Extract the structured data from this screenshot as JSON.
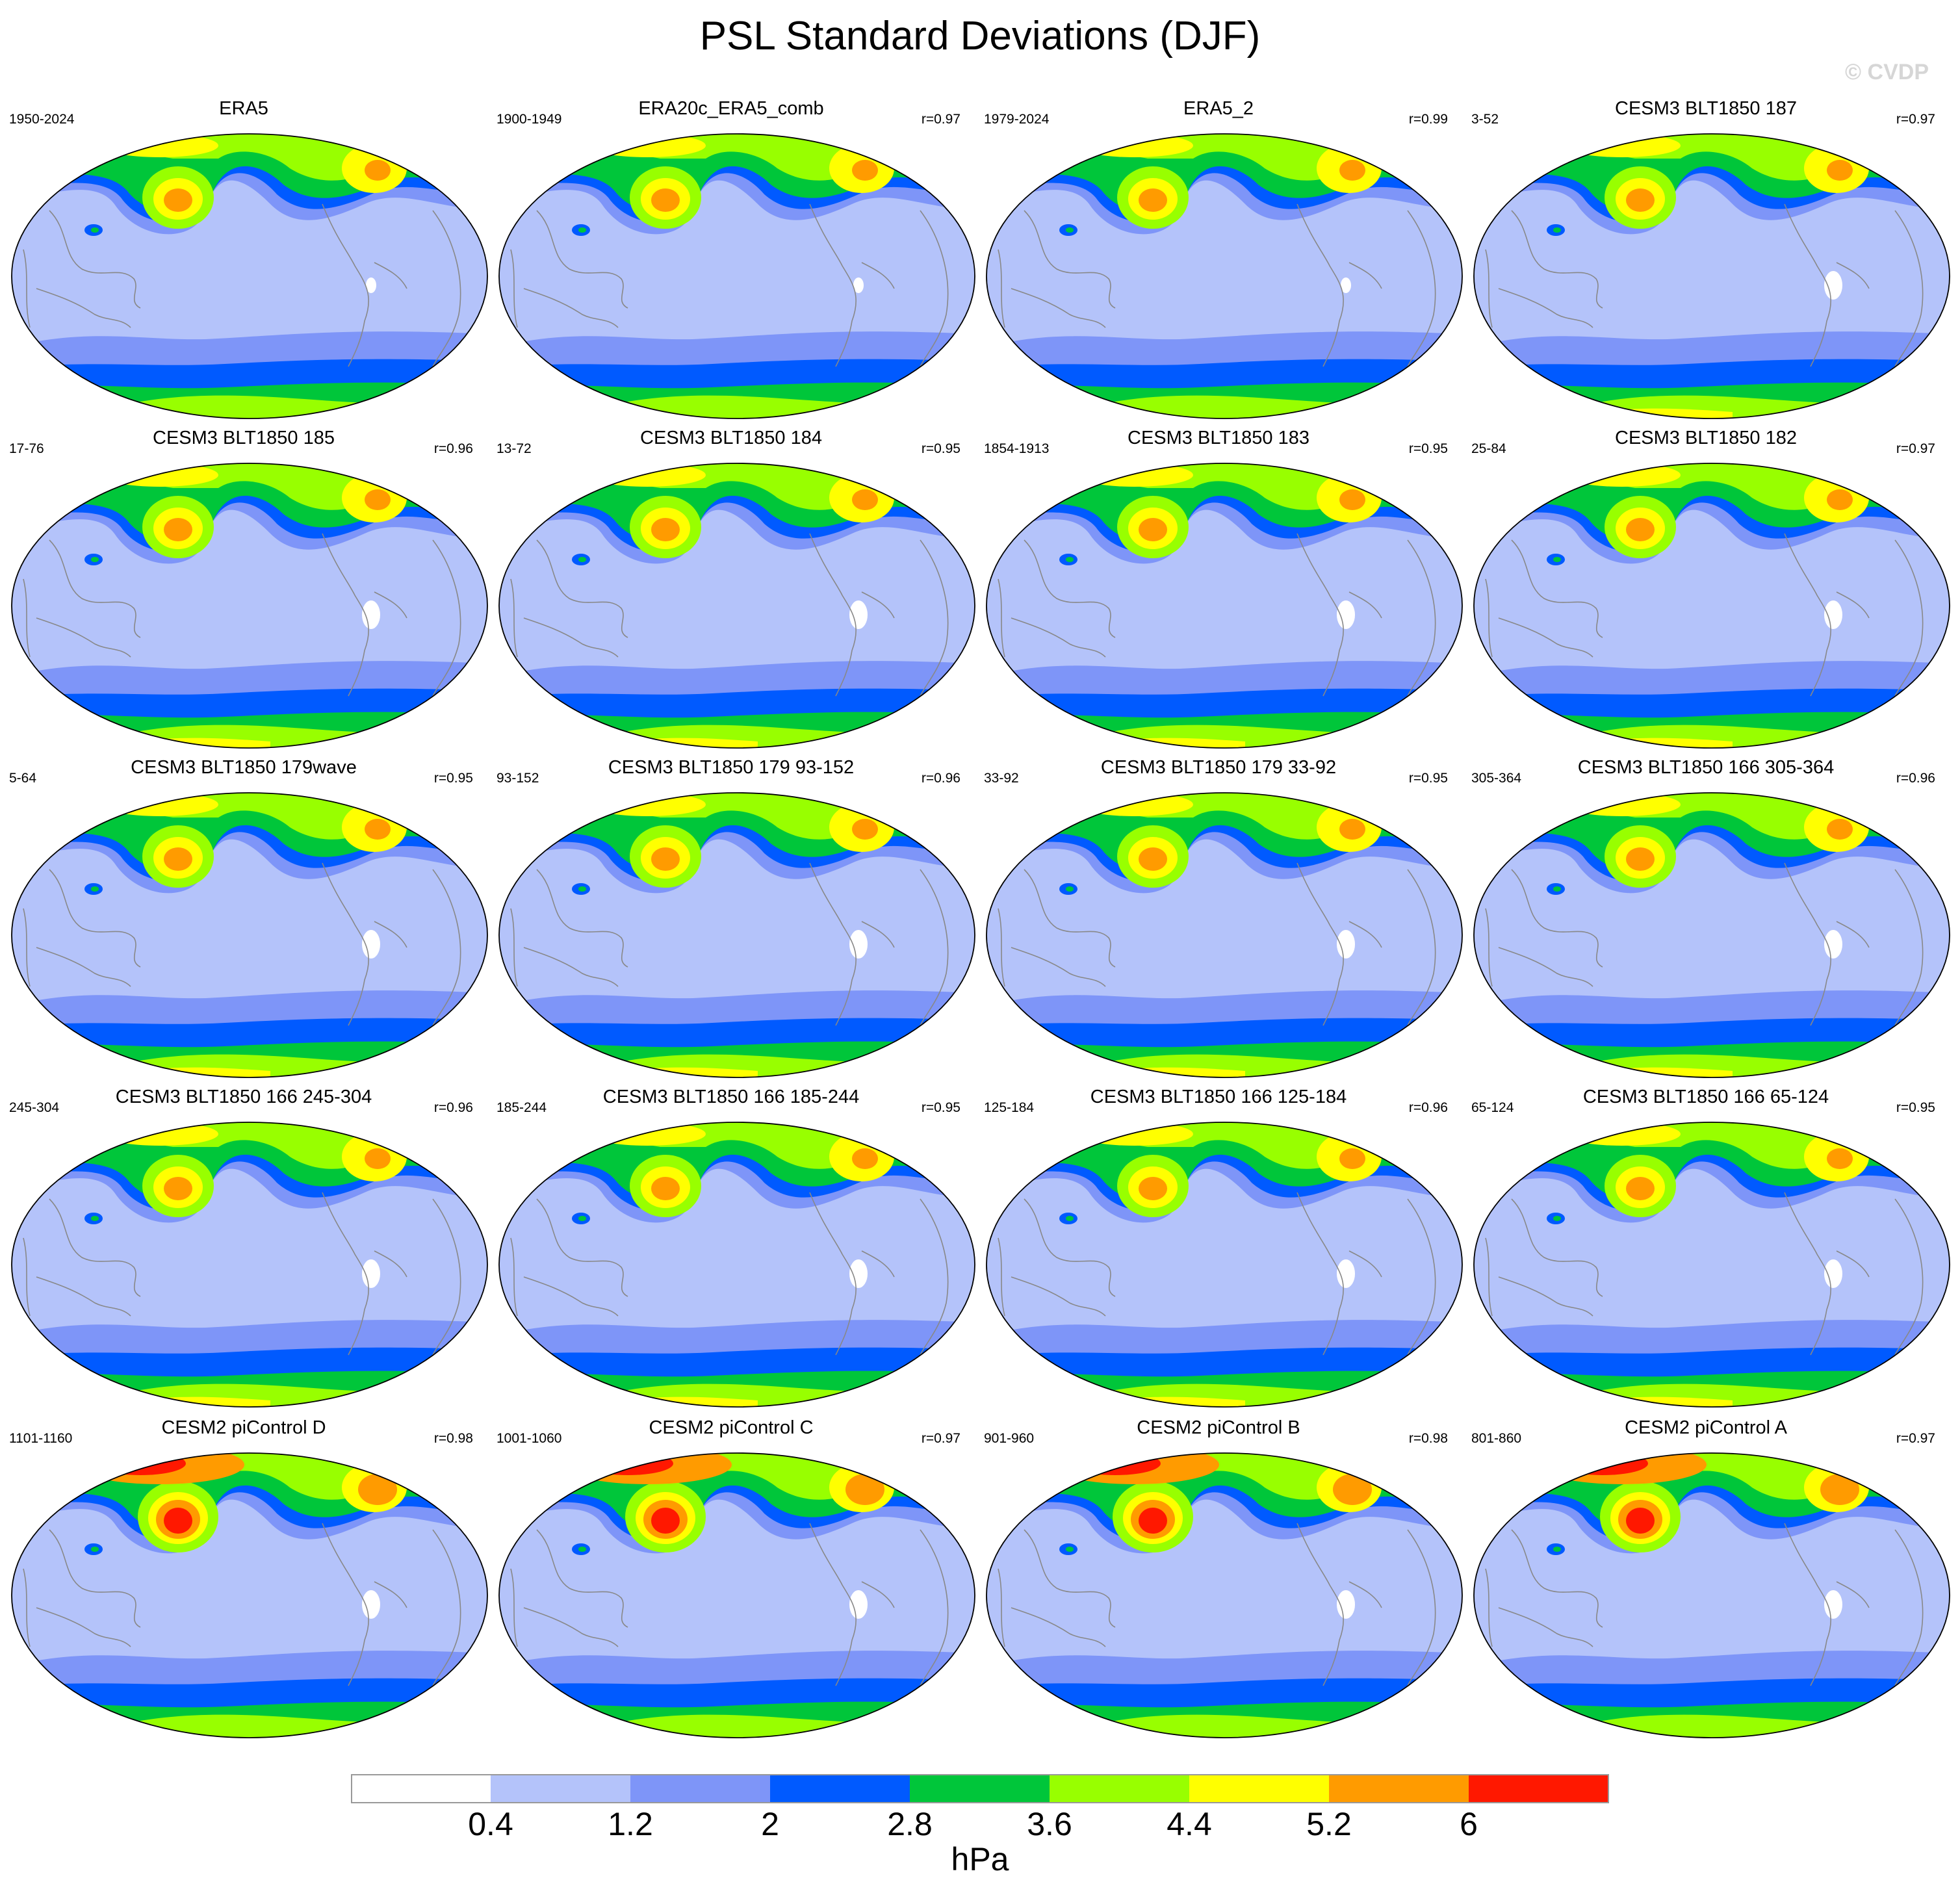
{
  "title": "PSL Standard Deviations (DJF)",
  "watermark": "© CVDP",
  "units": "hPa",
  "colorbar": {
    "levels": [
      "0.4",
      "1.2",
      "2",
      "2.8",
      "3.6",
      "4.4",
      "5.2",
      "6"
    ],
    "colors": [
      "#ffffff",
      "#b4c3fa",
      "#7e95f8",
      "#005aff",
      "#00c63a",
      "#98ff00",
      "#ffff00",
      "#ff9b00",
      "#ff1800"
    ]
  },
  "map_colors": {
    "background": "#b4c3fa",
    "mid": "#7e95f8",
    "storm_track": "#005aff",
    "green": "#00c63a",
    "lime": "#98ff00",
    "yellow": "#ffff00",
    "orange": "#ff9b00",
    "red": "#ff1800",
    "white": "#ffffff",
    "coast": "#888888"
  },
  "panels": [
    {
      "title": "ERA5",
      "years": "1950-2024",
      "corr": ""
    },
    {
      "title": "ERA20c_ERA5_comb",
      "years": "1900-1949",
      "corr": "r=0.97"
    },
    {
      "title": "ERA5_2",
      "years": "1979-2024",
      "corr": "r=0.99"
    },
    {
      "title": "CESM3 BLT1850 187",
      "years": "3-52",
      "corr": "r=0.97"
    },
    {
      "title": "CESM3 BLT1850 185",
      "years": "17-76",
      "corr": "r=0.96"
    },
    {
      "title": "CESM3 BLT1850 184",
      "years": "13-72",
      "corr": "r=0.95"
    },
    {
      "title": "CESM3 BLT1850 183",
      "years": "1854-1913",
      "corr": "r=0.95"
    },
    {
      "title": "CESM3 BLT1850 182",
      "years": "25-84",
      "corr": "r=0.97"
    },
    {
      "title": "CESM3 BLT1850 179wave",
      "years": "5-64",
      "corr": "r=0.95"
    },
    {
      "title": "CESM3 BLT1850 179 93-152",
      "years": "93-152",
      "corr": "r=0.96"
    },
    {
      "title": "CESM3 BLT1850 179 33-92",
      "years": "33-92",
      "corr": "r=0.95"
    },
    {
      "title": "CESM3 BLT1850 166 305-364",
      "years": "305-364",
      "corr": "r=0.96"
    },
    {
      "title": "CESM3 BLT1850 166 245-304",
      "years": "245-304",
      "corr": "r=0.96"
    },
    {
      "title": "CESM3 BLT1850 166 185-244",
      "years": "185-244",
      "corr": "r=0.95"
    },
    {
      "title": "CESM3 BLT1850 166 125-184",
      "years": "125-184",
      "corr": "r=0.96"
    },
    {
      "title": "CESM3 BLT1850 166 65-124",
      "years": "65-124",
      "corr": "r=0.95"
    },
    {
      "title": "CESM2 piControl D",
      "years": "1101-1160",
      "corr": "r=0.98"
    },
    {
      "title": "CESM2 piControl C",
      "years": "1001-1060",
      "corr": "r=0.97"
    },
    {
      "title": "CESM2 piControl B",
      "years": "901-960",
      "corr": "r=0.98"
    },
    {
      "title": "CESM2 piControl A",
      "years": "801-860",
      "corr": "r=0.97"
    }
  ]
}
